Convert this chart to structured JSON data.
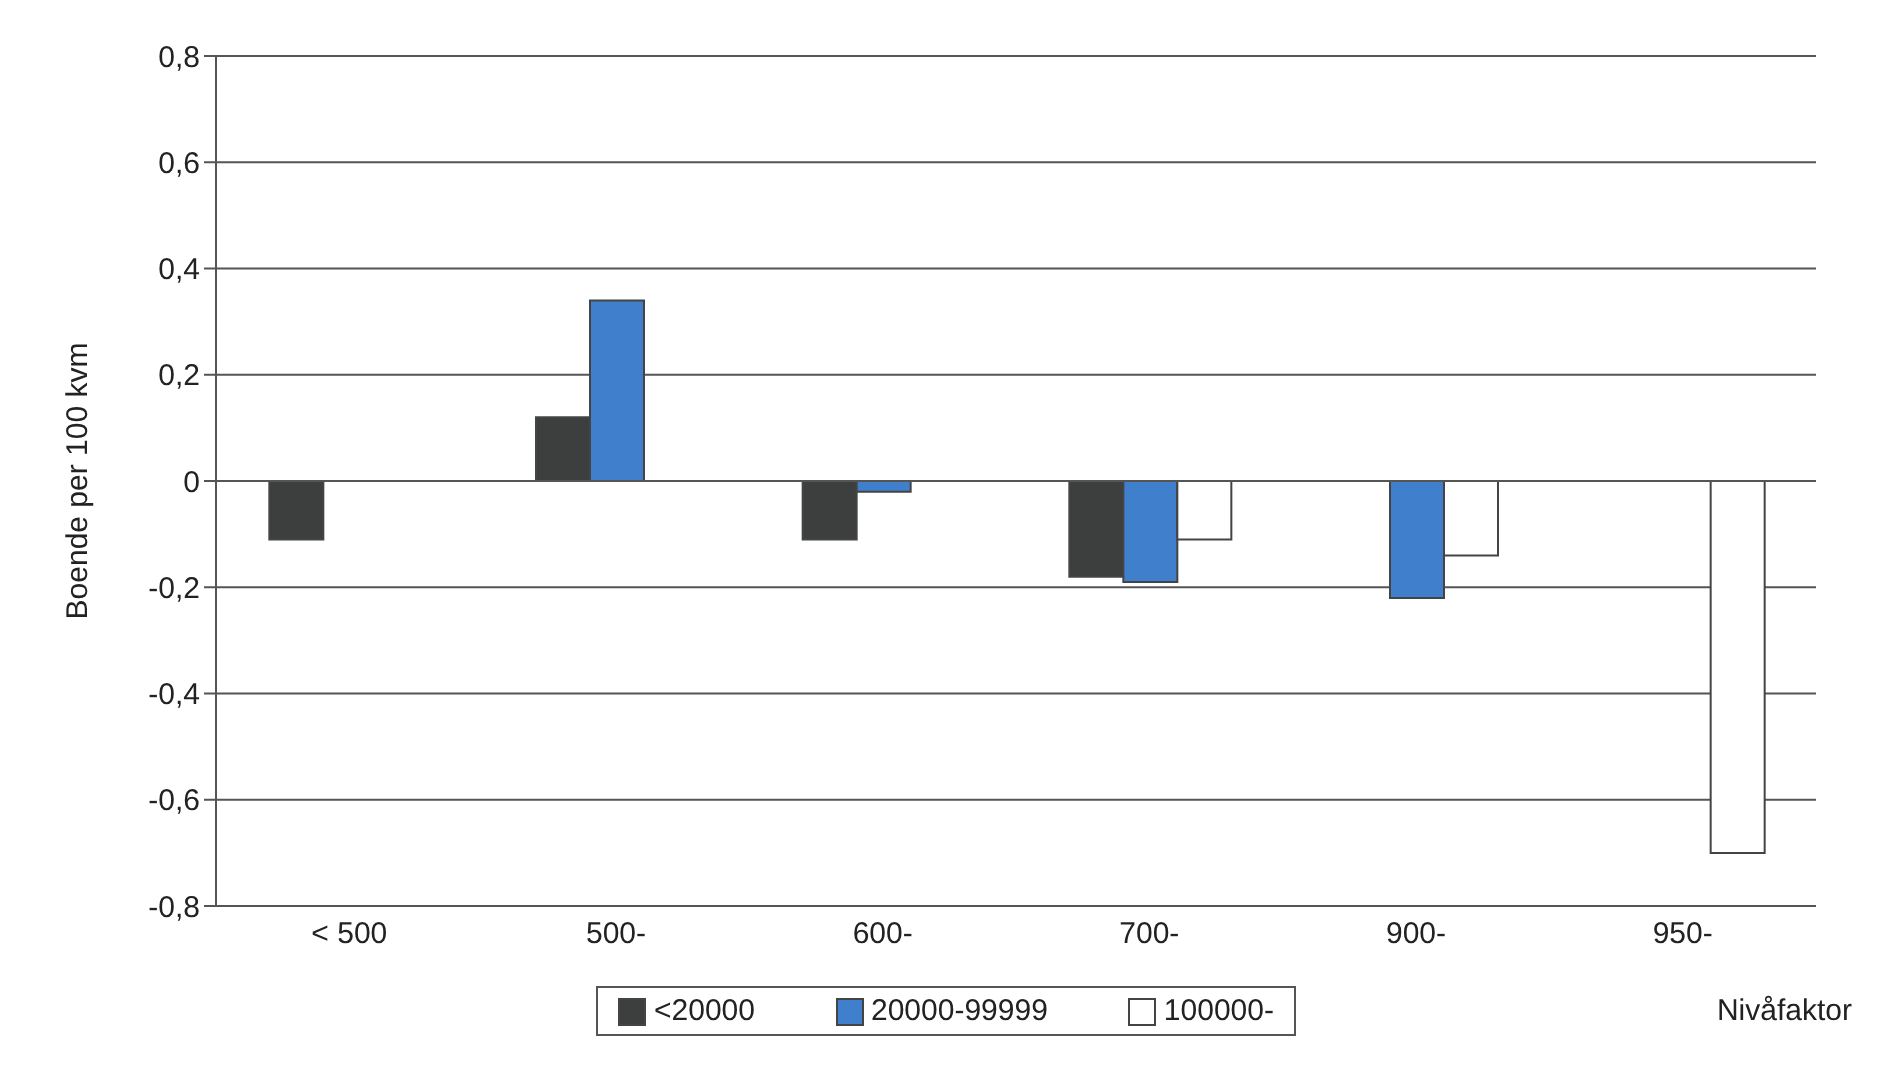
{
  "chart_data": {
    "type": "bar",
    "categories": [
      "< 500",
      "500-",
      "600-",
      "700-",
      "900-",
      "950-"
    ],
    "series": [
      {
        "name": "<20000",
        "color": "#3c3f3e",
        "values": [
          -0.11,
          0.12,
          -0.11,
          -0.18,
          null,
          null
        ]
      },
      {
        "name": "20000-99999",
        "color": "#3f7fcb",
        "values": [
          null,
          0.34,
          -0.02,
          -0.19,
          -0.22,
          null
        ]
      },
      {
        "name": "100000-",
        "color": "#ffffff",
        "values": [
          null,
          null,
          null,
          -0.11,
          -0.14,
          -0.7
        ]
      }
    ],
    "ylabel": "Boende per 100 kvm",
    "xlabel": "Nivåfaktor",
    "ylim": [
      -0.8,
      0.8
    ],
    "yticks": [
      {
        "value": -0.8,
        "label": "-0,8"
      },
      {
        "value": -0.6,
        "label": "-0,6"
      },
      {
        "value": -0.4,
        "label": "-0,4"
      },
      {
        "value": -0.2,
        "label": "-0,2"
      },
      0,
      {
        "value": 0.2,
        "label": "0,2"
      },
      {
        "value": 0.4,
        "label": "0,4"
      },
      {
        "value": 0.6,
        "label": "0,6"
      },
      {
        "value": 0.8,
        "label": "0,8"
      }
    ],
    "grid": "y",
    "legend": "bottom"
  }
}
